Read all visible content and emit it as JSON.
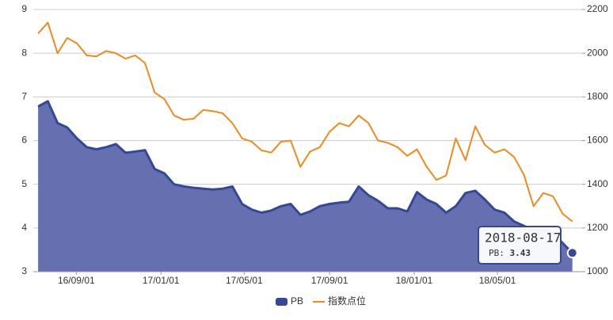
{
  "chart_data": {
    "type": "line",
    "x": [
      "2016-07-08",
      "2016-07-22",
      "2016-08-05",
      "2016-08-19",
      "2016-09-02",
      "2016-09-16",
      "2016-09-30",
      "2016-10-14",
      "2016-10-28",
      "2016-11-11",
      "2016-11-25",
      "2016-12-09",
      "2016-12-23",
      "2017-01-06",
      "2017-01-20",
      "2017-02-03",
      "2017-02-17",
      "2017-03-03",
      "2017-03-17",
      "2017-03-31",
      "2017-04-14",
      "2017-04-28",
      "2017-05-12",
      "2017-05-26",
      "2017-06-09",
      "2017-06-23",
      "2017-07-07",
      "2017-07-21",
      "2017-08-04",
      "2017-08-18",
      "2017-09-01",
      "2017-09-15",
      "2017-09-29",
      "2017-10-13",
      "2017-10-27",
      "2017-11-10",
      "2017-11-24",
      "2017-12-08",
      "2017-12-22",
      "2018-01-05",
      "2018-01-19",
      "2018-02-02",
      "2018-02-16",
      "2018-03-02",
      "2018-03-16",
      "2018-03-30",
      "2018-04-13",
      "2018-04-27",
      "2018-05-11",
      "2018-05-25",
      "2018-06-08",
      "2018-06-22",
      "2018-07-06",
      "2018-07-20",
      "2018-08-03",
      "2018-08-17"
    ],
    "series": [
      {
        "name": "PB",
        "color": "#34489a",
        "fill": "#6670b0",
        "area": true,
        "axis": "y",
        "values": [
          6.78,
          6.9,
          6.4,
          6.3,
          6.05,
          5.85,
          5.8,
          5.85,
          5.92,
          5.72,
          5.75,
          5.78,
          5.35,
          5.25,
          5.0,
          4.95,
          4.92,
          4.9,
          4.88,
          4.9,
          4.95,
          4.55,
          4.42,
          4.35,
          4.4,
          4.5,
          4.55,
          4.3,
          4.38,
          4.5,
          4.55,
          4.58,
          4.6,
          4.95,
          4.75,
          4.62,
          4.45,
          4.45,
          4.38,
          4.82,
          4.65,
          4.55,
          4.35,
          4.5,
          4.8,
          4.85,
          4.65,
          4.42,
          4.35,
          4.15,
          4.05,
          3.95,
          3.95,
          3.9,
          3.65,
          3.43
        ]
      },
      {
        "name": "指数点位",
        "color": "#f08a1c",
        "area": false,
        "axis": "y2",
        "values": [
          2090,
          2140,
          2000,
          2070,
          2045,
          1990,
          1985,
          2010,
          2000,
          1975,
          1990,
          1955,
          1820,
          1790,
          1715,
          1695,
          1700,
          1740,
          1735,
          1725,
          1680,
          1610,
          1595,
          1555,
          1545,
          1595,
          1600,
          1480,
          1550,
          1570,
          1640,
          1680,
          1665,
          1715,
          1680,
          1600,
          1590,
          1570,
          1530,
          1560,
          1480,
          1420,
          1440,
          1610,
          1510,
          1665,
          1580,
          1545,
          1560,
          1525,
          1445,
          1300,
          1360,
          1345,
          1265,
          1230
        ]
      }
    ],
    "xlim": [
      "2016-07-01",
      "2018-08-31"
    ],
    "xticks": [
      {
        "value": "2016-09-01",
        "label": "16/09/01"
      },
      {
        "value": "2017-01-01",
        "label": "17/01/01"
      },
      {
        "value": "2017-05-01",
        "label": "17/05/01"
      },
      {
        "value": "2017-09-01",
        "label": "17/09/01"
      },
      {
        "value": "2018-01-01",
        "label": "18/01/01"
      },
      {
        "value": "2018-05-01",
        "label": "18/05/01"
      }
    ],
    "ylim": [
      3,
      9
    ],
    "yticks": [
      3,
      4,
      5,
      6,
      7,
      8,
      9
    ],
    "y2lim": [
      1000,
      2200
    ],
    "y2ticks": [
      1000,
      1200,
      1400,
      1600,
      1800,
      2000,
      2200
    ],
    "grid": true,
    "legend": "bottom"
  }
}
